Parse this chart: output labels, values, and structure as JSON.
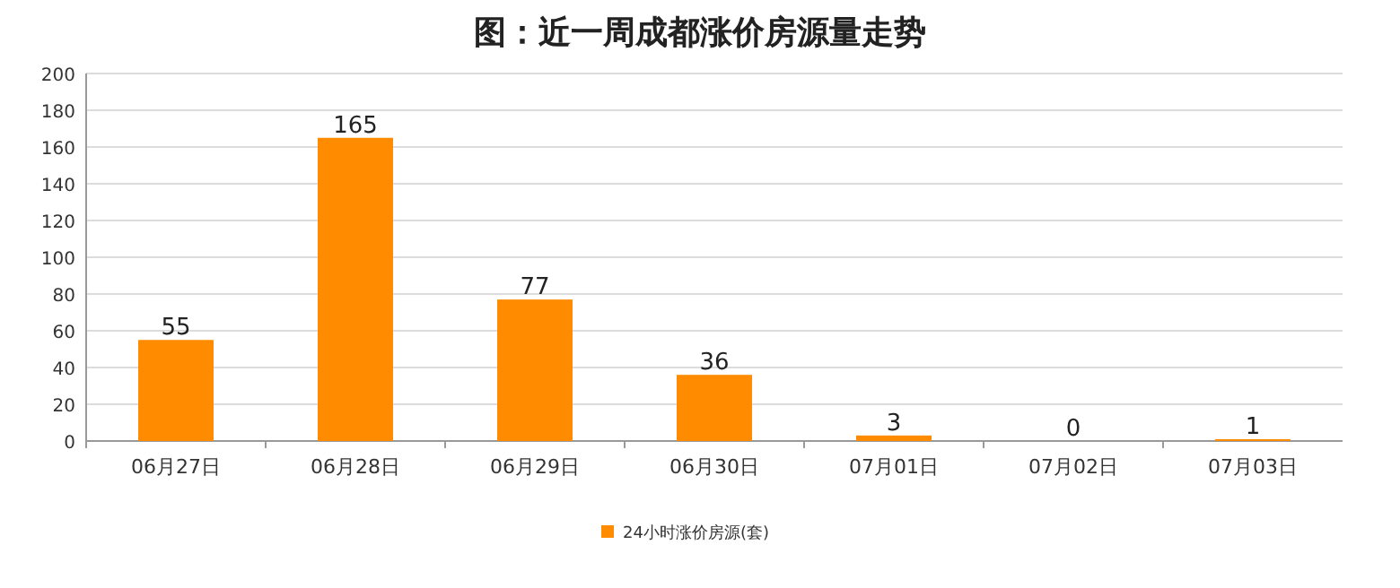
{
  "chart_data": {
    "type": "bar",
    "title": "图：近一周成都涨价房源量走势",
    "categories": [
      "06月27日",
      "06月28日",
      "06月29日",
      "06月30日",
      "07月01日",
      "07月02日",
      "07月03日"
    ],
    "series": [
      {
        "name": "24小时涨价房源(套)",
        "color": "#ff8c00",
        "values": [
          55,
          165,
          77,
          36,
          3,
          0,
          1
        ]
      }
    ],
    "ylim": [
      0,
      200
    ],
    "yticks": [
      0,
      20,
      40,
      60,
      80,
      100,
      120,
      140,
      160,
      180,
      200
    ],
    "grid": "y",
    "legend": "bottom",
    "data_labels": true
  }
}
